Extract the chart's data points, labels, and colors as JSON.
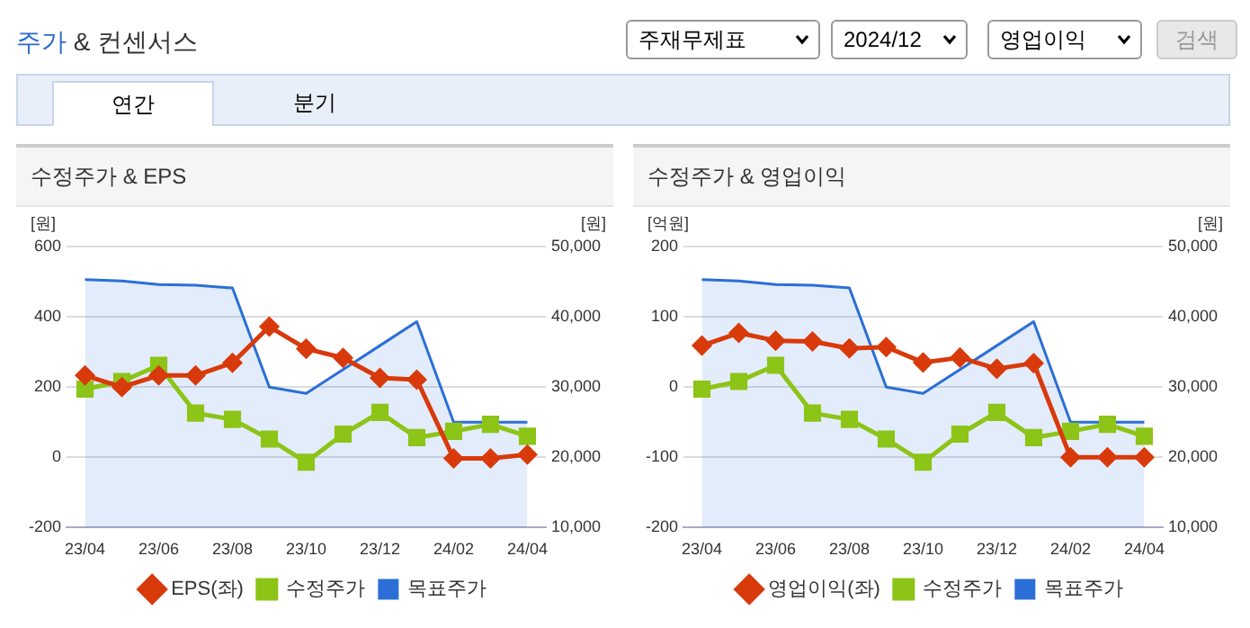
{
  "chart_data": [
    {
      "type": "other",
      "title": "주가 & 컨센서스",
      "annotations": [
        "주재무제표",
        "2024/12",
        "영업이익",
        "검색",
        "연간",
        "분기"
      ]
    },
    {
      "type": "line",
      "title": "수정주가 & EPS",
      "ylabel": "[원]",
      "y2label": "[원]",
      "categories": [
        "23/04",
        null,
        "23/06",
        null,
        "23/08",
        null,
        "23/10",
        null,
        "23/12",
        null,
        "24/02",
        null,
        "24/04"
      ],
      "series": [
        {
          "name": "목표주가",
          "type": "area",
          "axis": "y2",
          "marker": "none",
          "color": "#2b6fd6",
          "values": [
            45300,
            45100,
            44600,
            44500,
            44100,
            30000,
            29100,
            32500,
            35900,
            39300,
            25000,
            25000,
            25000
          ]
        },
        {
          "name": "EPS(좌)",
          "type": "line",
          "marker": "diamond",
          "color": "#d83a0b",
          "values": [
            233,
            200,
            233,
            233,
            269,
            372,
            309,
            283,
            226,
            221,
            -3,
            -3,
            8
          ]
        },
        {
          "name": "수정주가",
          "type": "line",
          "axis": "y2",
          "marker": "square",
          "color": "#8cc417",
          "values": [
            29700,
            30800,
            33100,
            26300,
            25400,
            22600,
            19300,
            23300,
            26400,
            22800,
            23700,
            24700,
            23000
          ]
        }
      ],
      "ylim": [
        -200,
        600
      ],
      "yticks": [
        -200,
        0,
        200,
        400,
        600
      ],
      "y2lim": [
        10000,
        50000
      ],
      "y2ticks": [
        {
          "value": 10000,
          "label": "10,000"
        },
        {
          "value": 20000,
          "label": "20,000"
        },
        {
          "value": 30000,
          "label": "30,000"
        },
        {
          "value": 40000,
          "label": "40,000"
        },
        {
          "value": 50000,
          "label": "50,000"
        }
      ],
      "grid": "y",
      "legend": "bottom"
    },
    {
      "type": "line",
      "title": "수정주가 & 영업이익",
      "ylabel": "[억원]",
      "y2label": "[원]",
      "categories": [
        "23/04",
        null,
        "23/06",
        null,
        "23/08",
        null,
        "23/10",
        null,
        "23/12",
        null,
        "24/02",
        null,
        "24/04"
      ],
      "series": [
        {
          "name": "목표주가",
          "type": "area",
          "axis": "y2",
          "marker": "none",
          "color": "#2b6fd6",
          "values": [
            45300,
            45100,
            44600,
            44500,
            44100,
            30000,
            29100,
            32500,
            35900,
            39300,
            25000,
            25000,
            25000
          ]
        },
        {
          "name": "영업이익(좌)",
          "type": "line",
          "marker": "diamond",
          "color": "#d83a0b",
          "values": [
            59,
            77,
            66,
            65,
            55,
            57,
            35,
            42,
            26,
            34,
            -100,
            -100,
            -100
          ]
        },
        {
          "name": "수정주가",
          "type": "line",
          "axis": "y2",
          "marker": "square",
          "color": "#8cc417",
          "values": [
            29700,
            30800,
            33100,
            26300,
            25400,
            22600,
            19300,
            23300,
            26400,
            22800,
            23700,
            24700,
            23000
          ]
        }
      ],
      "ylim": [
        -200,
        200
      ],
      "yticks": [
        -200,
        -100,
        0,
        100,
        200
      ],
      "y2lim": [
        10000,
        50000
      ],
      "y2ticks": [
        {
          "value": 10000,
          "label": "10,000"
        },
        {
          "value": 20000,
          "label": "20,000"
        },
        {
          "value": 30000,
          "label": "30,000"
        },
        {
          "value": 40000,
          "label": "40,000"
        },
        {
          "value": 50000,
          "label": "50,000"
        }
      ],
      "grid": "y",
      "legend": "bottom"
    }
  ]
}
